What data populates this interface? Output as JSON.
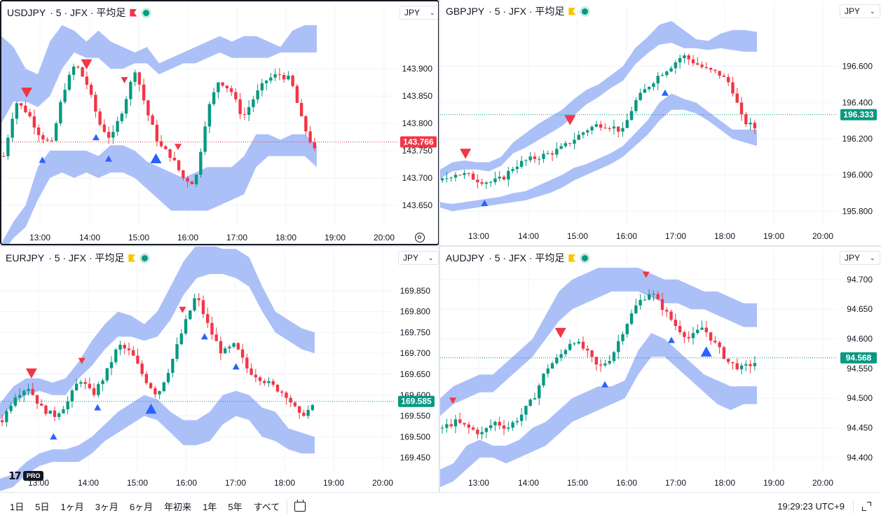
{
  "colors": {
    "up": "#089981",
    "down": "#f23645",
    "band": "#a3b9f7",
    "grid": "#f0f3fa",
    "axis_text": "#131722",
    "signal_up": "#2962ff",
    "signal_down": "#f23645",
    "flag_yellow": "#f7c600"
  },
  "panes": [
    {
      "id": "usdjpy",
      "symbol": "USDJPY",
      "detail": "· 5 · JFX · 平均足",
      "currency": "JPY",
      "flag": "red",
      "active": true,
      "chart_data": {
        "type": "candlestick",
        "x_ticks": [
          "13:00",
          "14:00",
          "15:00",
          "16:00",
          "17:00",
          "18:00",
          "19:00",
          "20:00"
        ],
        "y_ticks": [
          "143.900",
          "143.850",
          "143.800",
          "143.750",
          "143.700",
          "143.650"
        ],
        "ylim": [
          143.61,
          143.985
        ],
        "last_price": "143.766",
        "last_price_color": "#f23645",
        "path": [
          143.74,
          143.84,
          143.82,
          143.78,
          143.76,
          143.86,
          143.91,
          143.87,
          143.8,
          143.77,
          143.83,
          143.9,
          143.82,
          143.76,
          143.74,
          143.7,
          143.69,
          143.82,
          143.88,
          143.86,
          143.81,
          143.85,
          143.88,
          143.89,
          143.88,
          143.8,
          143.75
        ],
        "band_upper_hi": [
          143.96,
          143.94,
          143.9,
          143.89,
          143.95,
          143.98,
          143.97,
          143.95,
          143.97,
          143.95,
          143.94,
          143.93,
          143.94,
          143.91,
          143.92,
          143.93,
          143.94,
          143.95,
          143.96,
          143.95,
          143.96,
          143.96,
          143.95,
          143.94,
          143.97,
          143.98,
          143.98
        ],
        "band_upper_lo": [
          143.8,
          143.84,
          143.84,
          143.83,
          143.85,
          143.9,
          143.93,
          143.92,
          143.92,
          143.9,
          143.9,
          143.91,
          143.91,
          143.89,
          143.9,
          143.91,
          143.91,
          143.92,
          143.93,
          143.92,
          143.92,
          143.92,
          143.92,
          143.93,
          143.93,
          143.93,
          143.93
        ],
        "band_lower_hi": [
          143.58,
          143.62,
          143.65,
          143.72,
          143.75,
          143.75,
          143.75,
          143.75,
          143.74,
          143.76,
          143.76,
          143.75,
          143.73,
          143.72,
          143.71,
          143.7,
          143.71,
          143.72,
          143.72,
          143.72,
          143.74,
          143.78,
          143.78,
          143.77,
          143.78,
          143.78,
          143.76
        ],
        "band_lower_lo": [
          143.56,
          143.59,
          143.61,
          143.66,
          143.7,
          143.71,
          143.7,
          143.71,
          143.7,
          143.71,
          143.71,
          143.7,
          143.68,
          143.66,
          143.64,
          143.64,
          143.64,
          143.64,
          143.65,
          143.66,
          143.67,
          143.72,
          143.74,
          143.74,
          143.74,
          143.74,
          143.72
        ],
        "signals": [
          {
            "x": 0.08,
            "side": "down",
            "size": "big"
          },
          {
            "x": 0.27,
            "side": "down",
            "size": "big"
          },
          {
            "x": 0.39,
            "side": "down",
            "size": "small"
          },
          {
            "x": 0.56,
            "side": "down",
            "size": "small"
          },
          {
            "x": 0.13,
            "side": "up",
            "size": "small"
          },
          {
            "x": 0.3,
            "side": "up",
            "size": "small"
          },
          {
            "x": 0.34,
            "side": "up",
            "size": "small"
          },
          {
            "x": 0.49,
            "side": "up",
            "size": "big"
          }
        ]
      }
    },
    {
      "id": "gbpjpy",
      "symbol": "GBPJPY",
      "detail": "· 5 · JFX · 平均足",
      "currency": "JPY",
      "flag": "yellow",
      "active": false,
      "chart_data": {
        "type": "candlestick",
        "x_ticks": [
          "13:00",
          "14:00",
          "15:00",
          "16:00",
          "17:00",
          "18:00",
          "19:00",
          "20:00"
        ],
        "y_ticks": [
          "196.600",
          "196.400",
          "196.200",
          "196.000",
          "195.800"
        ],
        "ylim": [
          195.72,
          196.85
        ],
        "last_price": "196.333",
        "last_price_color": "#089981",
        "path": [
          195.97,
          196.01,
          196.0,
          195.97,
          195.96,
          195.98,
          196.05,
          196.08,
          196.1,
          196.12,
          196.15,
          196.2,
          196.25,
          196.28,
          196.27,
          196.24,
          196.4,
          196.48,
          196.55,
          196.6,
          196.66,
          196.62,
          196.58,
          196.56,
          196.5,
          196.3,
          196.26
        ],
        "band_upper_hi": [
          196.03,
          196.07,
          196.08,
          196.07,
          196.07,
          196.1,
          196.18,
          196.23,
          196.28,
          196.32,
          196.36,
          196.42,
          196.47,
          196.5,
          196.55,
          196.6,
          196.7,
          196.76,
          196.83,
          196.85,
          196.8,
          196.75,
          196.74,
          196.78,
          196.8,
          196.8,
          196.79
        ],
        "band_upper_lo": [
          195.98,
          196.02,
          196.03,
          196.03,
          196.02,
          196.05,
          196.12,
          196.15,
          196.19,
          196.23,
          196.27,
          196.33,
          196.39,
          196.43,
          196.48,
          196.52,
          196.61,
          196.67,
          196.72,
          196.73,
          196.7,
          196.7,
          196.69,
          196.7,
          196.69,
          196.68,
          196.68
        ],
        "band_lower_hi": [
          195.85,
          195.84,
          195.85,
          195.86,
          195.87,
          195.88,
          195.9,
          195.91,
          195.94,
          195.97,
          196.0,
          196.04,
          196.06,
          196.09,
          196.12,
          196.16,
          196.23,
          196.3,
          196.4,
          196.45,
          196.42,
          196.4,
          196.35,
          196.3,
          196.25,
          196.25,
          196.25
        ],
        "band_lower_lo": [
          195.82,
          195.8,
          195.81,
          195.82,
          195.83,
          195.84,
          195.85,
          195.86,
          195.88,
          195.9,
          195.93,
          195.97,
          196.0,
          196.03,
          196.06,
          196.1,
          196.16,
          196.22,
          196.3,
          196.36,
          196.36,
          196.34,
          196.3,
          196.25,
          196.2,
          196.18,
          196.16
        ],
        "signals": [
          {
            "x": 0.08,
            "side": "down",
            "size": "big"
          },
          {
            "x": 0.41,
            "side": "down",
            "size": "big"
          },
          {
            "x": 0.14,
            "side": "up",
            "size": "small"
          },
          {
            "x": 0.71,
            "side": "up",
            "size": "small"
          }
        ]
      }
    },
    {
      "id": "eurjpy",
      "symbol": "EURJPY",
      "detail": "· 5 · JFX · 平均足",
      "currency": "JPY",
      "flag": "yellow",
      "active": false,
      "chart_data": {
        "type": "candlestick",
        "x_ticks": [
          "13:00",
          "14:00",
          "15:00",
          "16:00",
          "17:00",
          "18:00",
          "19:00",
          "20:00"
        ],
        "y_ticks": [
          "169.850",
          "169.800",
          "169.750",
          "169.700",
          "169.650",
          "169.600",
          "169.550",
          "169.500",
          "169.450"
        ],
        "ylim": [
          169.415,
          169.905
        ],
        "last_price": "169.585",
        "last_price_color": "#089981",
        "path": [
          169.54,
          169.6,
          169.62,
          169.57,
          169.55,
          169.58,
          169.64,
          169.6,
          169.65,
          169.72,
          169.7,
          169.64,
          169.6,
          169.67,
          169.76,
          169.84,
          169.76,
          169.7,
          169.72,
          169.66,
          169.64,
          169.62,
          169.6,
          169.55,
          169.57
        ],
        "band_upper_hi": [
          169.58,
          169.62,
          169.64,
          169.64,
          169.63,
          169.64,
          169.68,
          169.73,
          169.77,
          169.8,
          169.79,
          169.77,
          169.8,
          169.86,
          169.92,
          169.96,
          169.96,
          169.95,
          169.95,
          169.93,
          169.86,
          169.8,
          169.78,
          169.76,
          169.75
        ],
        "band_upper_lo": [
          169.54,
          169.58,
          169.6,
          169.61,
          169.6,
          169.6,
          169.64,
          169.67,
          169.71,
          169.74,
          169.74,
          169.73,
          169.74,
          169.78,
          169.84,
          169.88,
          169.89,
          169.89,
          169.88,
          169.86,
          169.8,
          169.75,
          169.73,
          169.71,
          169.7
        ],
        "band_lower_hi": [
          169.4,
          169.41,
          169.44,
          169.46,
          169.47,
          169.47,
          169.48,
          169.5,
          169.53,
          169.56,
          169.58,
          169.6,
          169.59,
          169.56,
          169.54,
          169.54,
          169.56,
          169.6,
          169.61,
          169.6,
          169.57,
          169.56,
          169.52,
          169.51,
          169.5
        ],
        "band_lower_lo": [
          169.37,
          169.38,
          169.41,
          169.43,
          169.44,
          169.44,
          169.44,
          169.46,
          169.49,
          169.51,
          169.53,
          169.55,
          169.54,
          169.51,
          169.48,
          169.48,
          169.49,
          169.53,
          169.55,
          169.54,
          169.5,
          169.49,
          169.47,
          169.46,
          169.46
        ],
        "signals": [
          {
            "x": 0.1,
            "side": "down",
            "size": "big"
          },
          {
            "x": 0.26,
            "side": "down",
            "size": "small"
          },
          {
            "x": 0.58,
            "side": "down",
            "size": "small"
          },
          {
            "x": 0.17,
            "side": "up",
            "size": "small"
          },
          {
            "x": 0.31,
            "side": "up",
            "size": "small"
          },
          {
            "x": 0.48,
            "side": "up",
            "size": "big"
          },
          {
            "x": 0.65,
            "side": "up",
            "size": "small"
          },
          {
            "x": 0.75,
            "side": "up",
            "size": "small"
          }
        ]
      }
    },
    {
      "id": "audjpy",
      "symbol": "AUDJPY",
      "detail": "· 5 · JFX · 平均足",
      "currency": "JPY",
      "flag": "yellow",
      "active": false,
      "chart_data": {
        "type": "candlestick",
        "x_ticks": [
          "13:00",
          "14:00",
          "15:00",
          "16:00",
          "17:00",
          "18:00",
          "19:00",
          "20:00"
        ],
        "y_ticks": [
          "94.700",
          "94.650",
          "94.600",
          "94.550",
          "94.500",
          "94.450",
          "94.400"
        ],
        "ylim": [
          94.375,
          94.72
        ],
        "last_price": "94.568",
        "last_price_color": "#089981",
        "path": [
          94.45,
          94.46,
          94.45,
          94.44,
          94.46,
          94.45,
          94.47,
          94.5,
          94.55,
          94.57,
          94.6,
          94.58,
          94.55,
          94.57,
          94.62,
          94.66,
          94.68,
          94.65,
          94.62,
          94.6,
          94.62,
          94.59,
          94.56,
          94.55,
          94.56
        ],
        "band_upper_hi": [
          94.5,
          94.52,
          94.53,
          94.54,
          94.54,
          94.56,
          94.58,
          94.6,
          94.64,
          94.68,
          94.7,
          94.71,
          94.72,
          94.72,
          94.72,
          94.72,
          94.71,
          94.7,
          94.7,
          94.69,
          94.68,
          94.68,
          94.67,
          94.66,
          94.66
        ],
        "band_upper_lo": [
          94.47,
          94.49,
          94.5,
          94.51,
          94.51,
          94.53,
          94.55,
          94.57,
          94.6,
          94.63,
          94.65,
          94.66,
          94.67,
          94.68,
          94.68,
          94.68,
          94.67,
          94.66,
          94.66,
          94.65,
          94.65,
          94.64,
          94.63,
          94.62,
          94.62
        ],
        "band_lower_hi": [
          94.38,
          94.39,
          94.42,
          94.43,
          94.42,
          94.42,
          94.43,
          94.45,
          94.46,
          94.48,
          94.5,
          94.51,
          94.52,
          94.52,
          94.53,
          94.58,
          94.61,
          94.6,
          94.58,
          94.56,
          94.54,
          94.53,
          94.52,
          94.52,
          94.52
        ],
        "band_lower_lo": [
          94.35,
          94.36,
          94.38,
          94.4,
          94.4,
          94.39,
          94.4,
          94.41,
          94.42,
          94.44,
          94.46,
          94.47,
          94.48,
          94.49,
          94.5,
          94.54,
          94.57,
          94.57,
          94.55,
          94.53,
          94.51,
          94.49,
          94.48,
          94.49,
          94.49
        ],
        "signals": [
          {
            "x": 0.04,
            "side": "down",
            "size": "small"
          },
          {
            "x": 0.38,
            "side": "down",
            "size": "big"
          },
          {
            "x": 0.65,
            "side": "down",
            "size": "small"
          },
          {
            "x": 0.52,
            "side": "up",
            "size": "small"
          },
          {
            "x": 0.73,
            "side": "up",
            "size": "small"
          },
          {
            "x": 0.84,
            "side": "up",
            "size": "big"
          }
        ]
      }
    }
  ],
  "bottom": {
    "ranges": [
      "1日",
      "5日",
      "1ヶ月",
      "3ヶ月",
      "6ヶ月",
      "年初来",
      "1年",
      "5年",
      "すべて"
    ],
    "clock": "19:29:23 UTC+9"
  }
}
